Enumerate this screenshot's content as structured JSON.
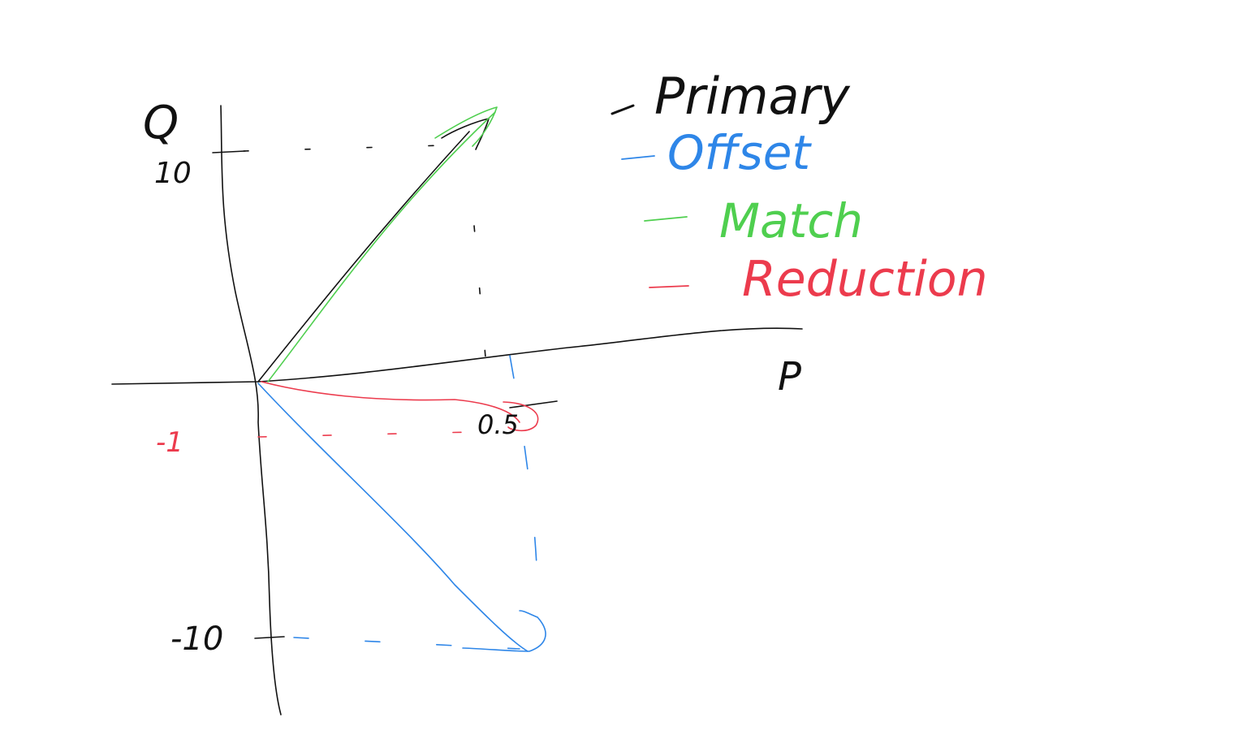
{
  "axes": {
    "x_label": "P",
    "y_label": "Q"
  },
  "ticks": {
    "y_pos": "10",
    "y_neg": "-10",
    "x_pos": "0.5",
    "x_neg": "-1"
  },
  "legend": [
    {
      "label": "Primary",
      "color": "#111111"
    },
    {
      "label": "Offset",
      "color": "#2e86e8"
    },
    {
      "label": "Match",
      "color": "#4fcf4f"
    },
    {
      "label": "Reduction",
      "color": "#ec3b4d"
    }
  ],
  "vectors": [
    {
      "name": "Primary",
      "color": "#111111",
      "P": 0.5,
      "Q": 10
    },
    {
      "name": "Match",
      "color": "#4fcf4f",
      "P": 0.55,
      "Q": 11
    },
    {
      "name": "Offset",
      "color": "#2e86e8",
      "P": 0.6,
      "Q": -10
    },
    {
      "name": "Reduction",
      "color": "#ec3b4d",
      "P": 0.6,
      "Q": -1
    }
  ]
}
